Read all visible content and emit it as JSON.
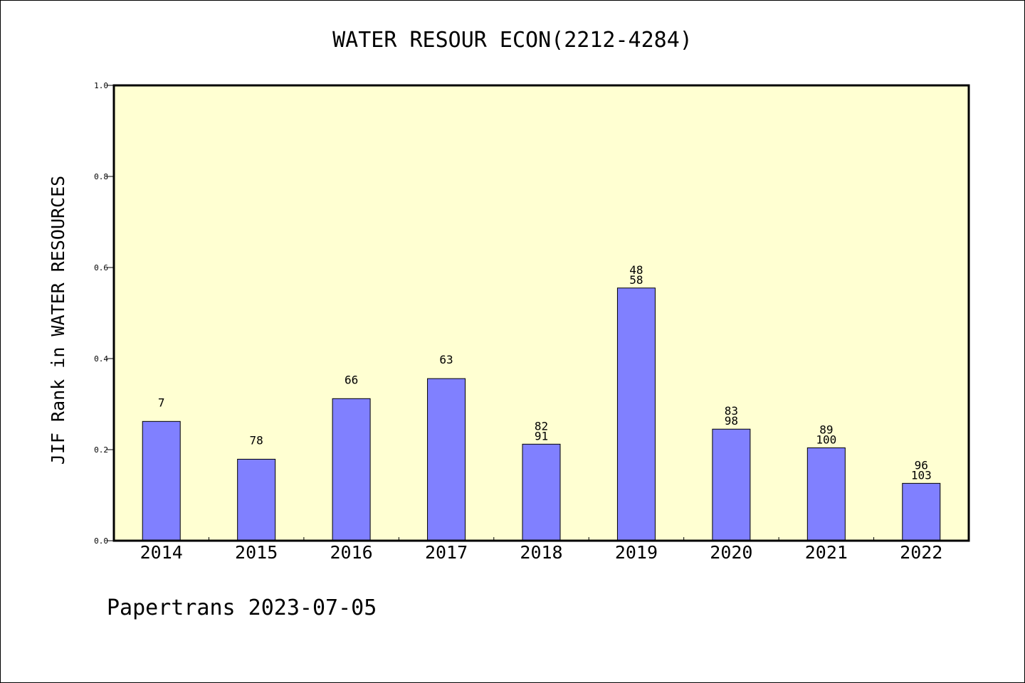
{
  "chart_data": {
    "type": "bar",
    "title": "WATER RESOUR ECON(2212-4284)",
    "xlabel": "",
    "ylabel": "JIF Rank in WATER RESOURCES",
    "ylim": [
      0.0,
      1.0
    ],
    "yticks": [
      "0.0",
      "0.2",
      "0.4",
      "0.6",
      "0.8",
      "1.0"
    ],
    "categories": [
      "2014",
      "2015",
      "2016",
      "2017",
      "2018",
      "2019",
      "2020",
      "2021",
      "2022"
    ],
    "values": [
      0.262,
      0.179,
      0.312,
      0.356,
      0.212,
      0.555,
      0.245,
      0.204,
      0.126
    ],
    "data_labels": [
      [
        "7"
      ],
      [
        "78"
      ],
      [
        "66"
      ],
      [
        "63"
      ],
      [
        "82",
        "91"
      ],
      [
        "48",
        "58"
      ],
      [
        "83",
        "98"
      ],
      [
        "89",
        "100"
      ],
      [
        "96",
        "103"
      ]
    ],
    "grid": false,
    "colors": {
      "plot_background": "#ffffd2",
      "bar_fill": "#8080ff",
      "bar_stroke": "#000000",
      "axis": "#000000"
    }
  },
  "footer": {
    "text": "Papertrans 2023-07-05"
  }
}
